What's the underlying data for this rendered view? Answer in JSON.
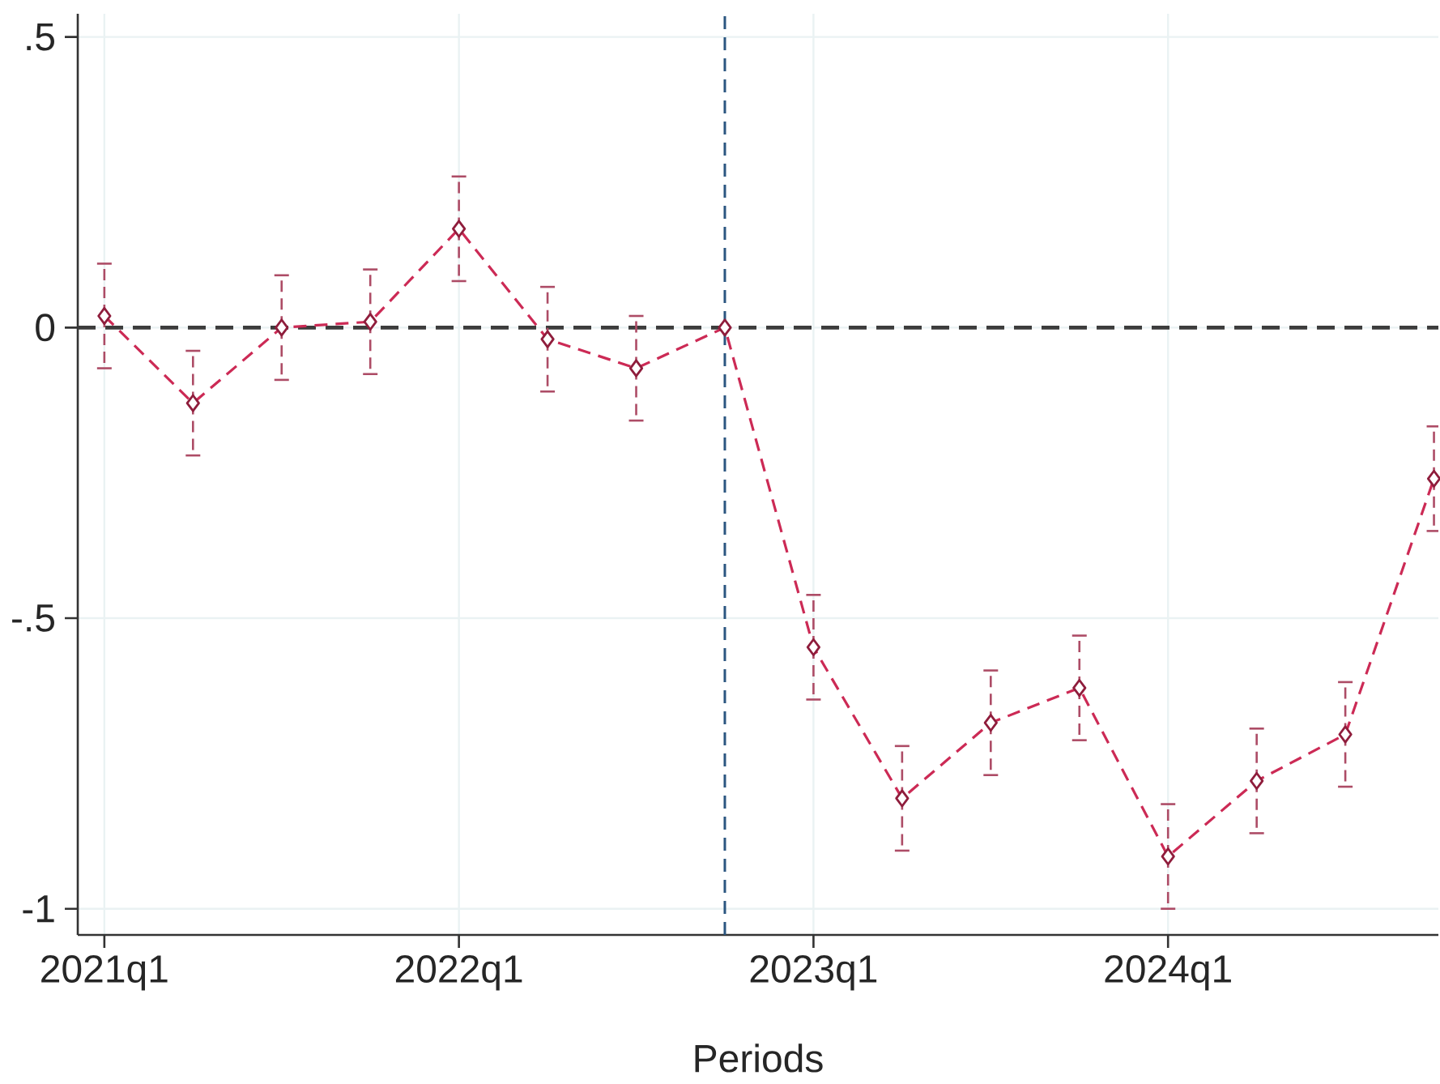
{
  "chart_data": {
    "type": "line",
    "xlabel": "Periods",
    "categories": [
      "2021q1",
      null,
      null,
      null,
      "2022q1",
      null,
      null,
      null,
      "2023q1",
      null,
      null,
      null,
      "2024q1",
      null,
      null,
      null
    ],
    "values": [
      0.02,
      -0.13,
      0.0,
      0.01,
      0.17,
      -0.02,
      -0.07,
      0,
      -0.55,
      -0.81,
      -0.68,
      -0.62,
      -0.91,
      -0.78,
      -0.7,
      -0.26
    ],
    "errors": [
      0.09,
      0.09,
      0.09,
      0.09,
      0.09,
      0.09,
      0.09,
      null,
      0.09,
      0.09,
      0.09,
      0.09,
      0.09,
      0.09,
      0.09,
      0.09
    ],
    "color": "#cc2a55",
    "ylim": [
      -1.045,
      0.54
    ],
    "yticks": [
      -1,
      {
        "value": -0.5,
        "label": "-.5"
      },
      0,
      {
        "value": 0.5,
        "label": ".5"
      }
    ],
    "grid": true,
    "marker": "diamond",
    "line_style": "dashed",
    "ref_lines": [
      {
        "axis": "y",
        "value": 0,
        "color": "#3c3c3c",
        "line_style": "dashed"
      }
    ]
  }
}
